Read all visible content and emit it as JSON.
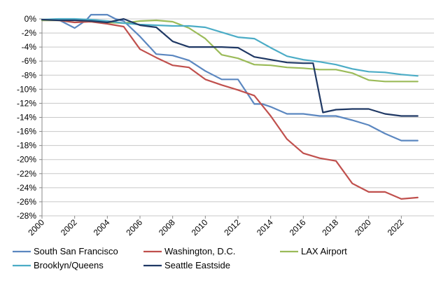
{
  "chart_data": {
    "type": "line",
    "title": "",
    "xlabel": "",
    "ylabel": "",
    "ylim": [
      -28,
      0
    ],
    "xlim": [
      2000,
      2024
    ],
    "grid": "horizontal",
    "legend_position": "bottom",
    "y_ticks": [
      "0%",
      "-2%",
      "-4%",
      "-6%",
      "-8%",
      "-10%",
      "-12%",
      "-14%",
      "-16%",
      "-18%",
      "-20%",
      "-22%",
      "-24%",
      "-26%",
      "-28%"
    ],
    "x_ticks": [
      "2000",
      "2002",
      "2004",
      "2006",
      "2008",
      "2010",
      "2012",
      "2014",
      "2016",
      "2018",
      "2020",
      "2022"
    ],
    "series": [
      {
        "name": "South San Francisco",
        "color": "#5b87c0",
        "x": [
          2000,
          2001,
          2002,
          2002.7,
          2003,
          2004,
          2004.5,
          2005,
          2006,
          2007,
          2008,
          2009,
          2010,
          2011,
          2012,
          2013,
          2013.5,
          2014,
          2015,
          2016,
          2017,
          2018,
          2019,
          2020,
          2021,
          2022,
          2023
        ],
        "y": [
          -0.2,
          -0.1,
          -1.3,
          -0.2,
          0.6,
          0.6,
          0,
          -0.3,
          -2.5,
          -5.0,
          -5.2,
          -5.9,
          -7.4,
          -8.6,
          -8.6,
          -12.1,
          -12.1,
          -12.5,
          -13.5,
          -13.5,
          -13.8,
          -13.8,
          -14.4,
          -15.1,
          -16.3,
          -17.3,
          -17.3
        ]
      },
      {
        "name": "Washington, D.C.",
        "color": "#c0504d",
        "x": [
          2000,
          2001,
          2002,
          2003,
          2004,
          2005,
          2006,
          2007,
          2008,
          2009,
          2010,
          2011,
          2012,
          2013,
          2014,
          2015,
          2016,
          2017,
          2018,
          2019,
          2020,
          2021,
          2022,
          2023
        ],
        "y": [
          -0.2,
          -0.2,
          -0.5,
          -0.4,
          -0.7,
          -1.1,
          -4.3,
          -5.5,
          -6.6,
          -6.9,
          -8.6,
          -9.4,
          -10.1,
          -10.9,
          -13.8,
          -17.1,
          -19.1,
          -19.8,
          -20.2,
          -23.4,
          -24.6,
          -24.6,
          -25.6,
          -25.4
        ]
      },
      {
        "name": "LAX Airport",
        "color": "#9bbb59",
        "x": [
          2000,
          2001,
          2002,
          2003,
          2004,
          2005,
          2006,
          2007,
          2008,
          2009,
          2010,
          2011,
          2012,
          2013,
          2014,
          2015,
          2016,
          2017,
          2018,
          2019,
          2020,
          2021,
          2022,
          2023
        ],
        "y": [
          -0.2,
          -0.2,
          -0.2,
          -0.3,
          -0.5,
          -0.6,
          -0.3,
          -0.2,
          -0.4,
          -1.3,
          -2.8,
          -5.1,
          -5.6,
          -6.5,
          -6.6,
          -6.9,
          -7.0,
          -7.2,
          -7.2,
          -7.7,
          -8.7,
          -8.9,
          -8.9,
          -8.9
        ]
      },
      {
        "name": "Brooklyn/Queens",
        "color": "#4bacc6",
        "x": [
          2000,
          2001,
          2002,
          2003,
          2004,
          2005,
          2006,
          2007,
          2008,
          2009,
          2010,
          2011,
          2012,
          2013,
          2014,
          2015,
          2016,
          2017,
          2018,
          2019,
          2020,
          2021,
          2022,
          2023
        ],
        "y": [
          -0.1,
          0,
          0,
          -0.1,
          -0.3,
          -0.6,
          -0.8,
          -0.9,
          -1.0,
          -1.0,
          -1.2,
          -1.9,
          -2.6,
          -2.8,
          -4.1,
          -5.3,
          -5.8,
          -6.1,
          -6.5,
          -7.1,
          -7.5,
          -7.6,
          -7.9,
          -8.1
        ]
      },
      {
        "name": "Seattle Eastside",
        "color": "#1f3864",
        "x": [
          2000,
          2001,
          2002,
          2003,
          2004,
          2005,
          2006,
          2007,
          2008,
          2009,
          2010,
          2011,
          2012,
          2013,
          2014,
          2015,
          2016,
          2016.6,
          2017.2,
          2018,
          2019,
          2020,
          2021,
          2022,
          2023
        ],
        "y": [
          -0.1,
          -0.2,
          -0.2,
          -0.3,
          -0.5,
          0,
          -0.9,
          -1.2,
          -3.2,
          -4.0,
          -4.0,
          -4.0,
          -4.1,
          -5.4,
          -5.8,
          -6.2,
          -6.3,
          -6.3,
          -13.3,
          -12.9,
          -12.8,
          -12.8,
          -13.5,
          -13.8,
          -13.8
        ]
      }
    ]
  }
}
